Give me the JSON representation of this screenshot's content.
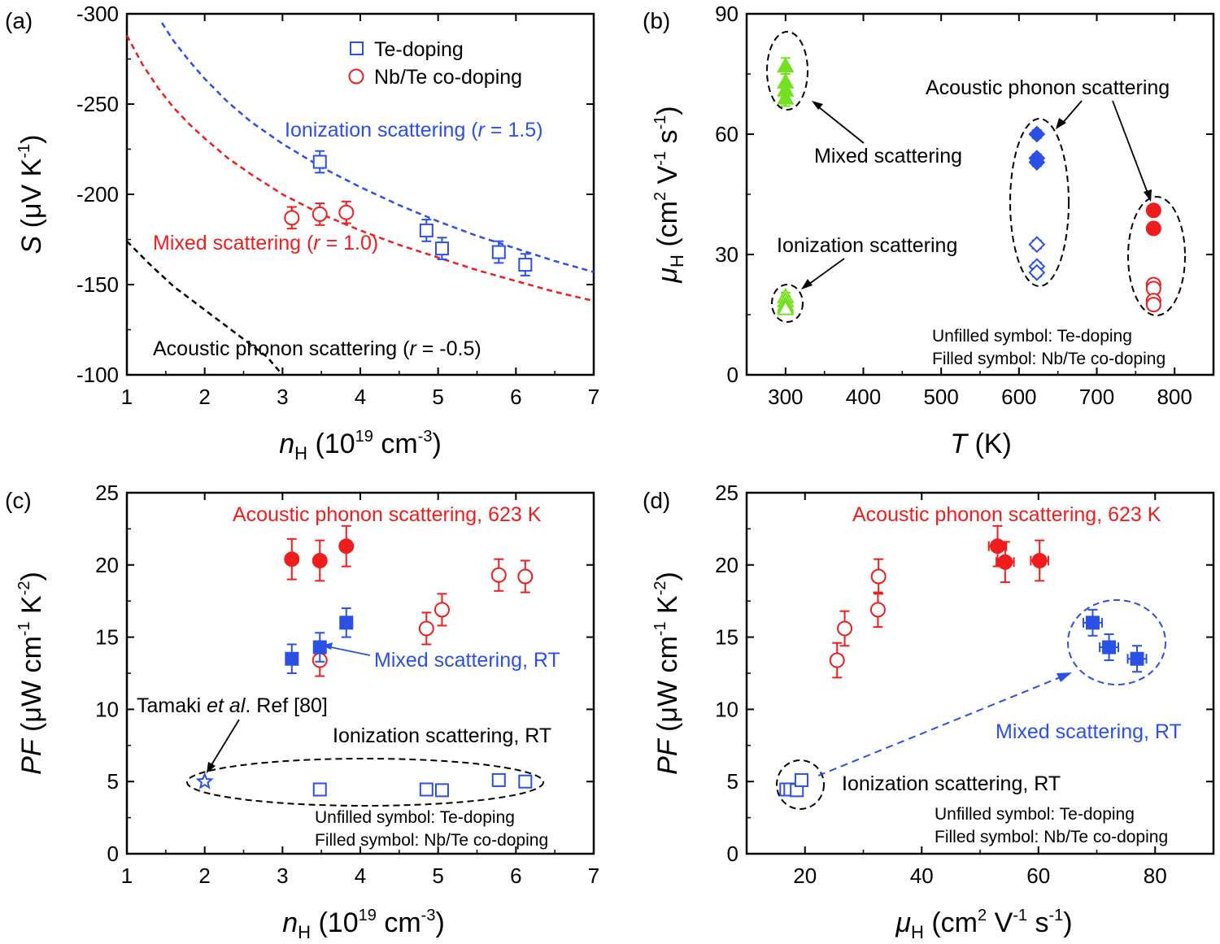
{
  "colors": {
    "red": "#ef1d1d",
    "blue": "#2b50e6",
    "green": "#74e01f",
    "black": "#000000"
  },
  "chart_data": [
    {
      "panel": "(a)",
      "type": "scatter",
      "xlabel_main": "n",
      "xlabel_sub": "H",
      "xlabel_rest": " (10",
      "xlabel_exp": "19",
      "xlabel_unit": " cm",
      "xlabel_unit_exp": "-3",
      "xlabel_end": ")",
      "ylabel_main": "S",
      "ylabel_rest": " (μV K",
      "ylabel_exp": "-1",
      "ylabel_end": ")",
      "xlim": [
        1,
        7
      ],
      "ylim": [
        -100,
        -300
      ],
      "xticks": [
        1,
        2,
        3,
        4,
        5,
        6,
        7
      ],
      "yticks": [
        -100,
        -150,
        -200,
        -250,
        -300
      ],
      "legend": [
        {
          "label": "Te-doping",
          "marker": "square-open",
          "color": "blue"
        },
        {
          "label": "Nb/Te co-doping",
          "marker": "circle-open",
          "color": "red"
        }
      ],
      "series": [
        {
          "name": "Te-doping",
          "marker": "square-open",
          "color": "blue",
          "x": [
            3.48,
            4.85,
            5.05,
            5.78,
            6.12
          ],
          "y": [
            -218,
            -180,
            -170,
            -168,
            -161
          ],
          "yerr": 6
        },
        {
          "name": "Nb/Te co-doping",
          "marker": "circle-open",
          "color": "red",
          "x": [
            3.12,
            3.48,
            3.82
          ],
          "y": [
            -187,
            -189,
            -190
          ],
          "yerr": 6
        }
      ],
      "curves": [
        {
          "name": "Ionization scattering",
          "color": "blue",
          "x": [
            1.45,
            1.6,
            1.8,
            2.0,
            2.3,
            2.6,
            3.0,
            3.5,
            4.0,
            4.5,
            5.0,
            5.5,
            6.0,
            6.5,
            7.0
          ],
          "y": [
            -295,
            -285,
            -274,
            -264,
            -251,
            -240,
            -228,
            -215,
            -204,
            -194,
            -185,
            -177,
            -170,
            -163,
            -157
          ]
        },
        {
          "name": "Mixed scattering",
          "color": "red",
          "x": [
            1.0,
            1.2,
            1.4,
            1.6,
            1.8,
            2.0,
            2.3,
            2.6,
            3.0,
            3.5,
            4.0,
            4.5,
            5.0,
            5.5,
            6.0,
            6.5,
            7.0
          ],
          "y": [
            -288,
            -272,
            -259,
            -248,
            -239,
            -231,
            -220,
            -211,
            -200,
            -189,
            -180,
            -172,
            -165,
            -158,
            -152,
            -146,
            -141
          ]
        },
        {
          "name": "Acoustic phonon scattering",
          "color": "black",
          "x": [
            1.0,
            1.3,
            1.6,
            2.0,
            2.4,
            2.8,
            3.0
          ],
          "y": [
            -174,
            -161,
            -149,
            -136,
            -123,
            -110,
            -100
          ]
        }
      ],
      "annotations": [
        {
          "color": "blue",
          "parts": [
            "Ionization scattering (",
            "r",
            " = 1.5)"
          ]
        },
        {
          "color": "red",
          "parts": [
            "Mixed scattering (",
            "r",
            " = 1.0)"
          ]
        },
        {
          "color": "black",
          "parts": [
            "Acoustic phonon scattering (",
            "r",
            " = -0.5)"
          ]
        }
      ]
    },
    {
      "panel": "(b)",
      "type": "scatter",
      "xlabel_main": "T",
      "xlabel_rest": " (K)",
      "ylabel_main": "μ",
      "ylabel_sub": "H",
      "ylabel_rest": " (cm",
      "ylabel_exp1": "2",
      "ylabel_mid": " V",
      "ylabel_exp2": "-1",
      "ylabel_mid2": " s",
      "ylabel_exp3": "-1",
      "ylabel_end": ")",
      "xlim": [
        250,
        850
      ],
      "ylim": [
        0,
        90
      ],
      "xticks": [
        300,
        400,
        500,
        600,
        700,
        800
      ],
      "yticks": [
        0,
        30,
        60,
        90
      ],
      "series": [
        {
          "name": "Mixed scattering (Nb/Te)",
          "marker": "triangle-filled",
          "color": "green",
          "x": [
            300,
            300,
            300,
            300
          ],
          "y": [
            77,
            73,
            71,
            69
          ],
          "yerr": 2
        },
        {
          "name": "Ionization scattering (Te)",
          "marker": "triangle-open",
          "color": "green",
          "x": [
            300,
            300,
            300,
            300,
            300
          ],
          "y": [
            19.5,
            18.5,
            17.5,
            17,
            16.5
          ],
          "yerr": 1
        },
        {
          "name": "Acoustic phonon Te 623 K",
          "marker": "diamond-open",
          "color": "blue",
          "x": [
            623,
            623,
            623
          ],
          "y": [
            32.5,
            27,
            25.5
          ],
          "yerr": 1
        },
        {
          "name": "Acoustic phonon Nb/Te 623 K",
          "marker": "diamond-filled",
          "color": "blue",
          "x": [
            623,
            623,
            623
          ],
          "y": [
            60,
            54,
            53
          ],
          "yerr": 1
        },
        {
          "name": "Acoustic phonon Te 773 K",
          "marker": "circle-open",
          "color": "red",
          "x": [
            773,
            773,
            773,
            773
          ],
          "y": [
            22.5,
            21.5,
            18.5,
            17.5
          ],
          "yerr": 1
        },
        {
          "name": "Acoustic phonon Nb/Te 773 K",
          "marker": "circle-filled",
          "color": "red",
          "x": [
            773,
            773
          ],
          "y": [
            41,
            36.5
          ],
          "yerr": 1
        }
      ],
      "annotations": [
        {
          "color": "black",
          "text": "Mixed scattering"
        },
        {
          "color": "black",
          "text": "Ionization scattering"
        },
        {
          "color": "black",
          "text": "Acoustic phonon scattering"
        }
      ],
      "notes": [
        "Unfilled symbol: Te-doping",
        "Filled symbol: Nb/Te co-doping"
      ]
    },
    {
      "panel": "(c)",
      "type": "scatter",
      "xlabel_main": "n",
      "xlabel_sub": "H",
      "xlabel_rest": " (10",
      "xlabel_exp": "19",
      "xlabel_unit": " cm",
      "xlabel_unit_exp": "-3",
      "xlabel_end": ")",
      "ylabel_main": "PF",
      "ylabel_rest": " (μW cm",
      "ylabel_exp1": "-1",
      "ylabel_mid": " K",
      "ylabel_exp2": "-2",
      "ylabel_end": ")",
      "xlim": [
        1,
        7
      ],
      "ylim": [
        0,
        25
      ],
      "xticks": [
        1,
        2,
        3,
        4,
        5,
        6,
        7
      ],
      "yticks": [
        0,
        5,
        10,
        15,
        20,
        25
      ],
      "series": [
        {
          "name": "Nb/Te 623 K",
          "marker": "circle-filled",
          "color": "red",
          "x": [
            3.12,
            3.48,
            3.82
          ],
          "y": [
            20.4,
            20.3,
            21.3
          ],
          "yerr": 1.4
        },
        {
          "name": "Te 623 K",
          "marker": "circle-open",
          "color": "red",
          "x": [
            3.48,
            4.85,
            5.05,
            5.78,
            6.12
          ],
          "y": [
            13.4,
            15.6,
            16.9,
            19.3,
            19.2
          ],
          "yerr": 1.1
        },
        {
          "name": "Nb/Te RT",
          "marker": "square-filled",
          "color": "blue",
          "x": [
            3.12,
            3.48,
            3.82
          ],
          "y": [
            13.5,
            14.3,
            16.0
          ],
          "yerr": 1.0
        },
        {
          "name": "Te RT",
          "marker": "square-open",
          "color": "blue",
          "x": [
            3.48,
            4.85,
            5.05,
            5.78,
            6.12
          ],
          "y": [
            4.45,
            4.45,
            4.4,
            5.1,
            5.0
          ],
          "yerr": 0.3
        },
        {
          "name": "Tamaki et al.",
          "marker": "star-open",
          "color": "blue",
          "x": [
            2.0
          ],
          "y": [
            5.0
          ],
          "yerr": 0
        }
      ],
      "annotations": [
        {
          "color": "red",
          "text": "Acoustic phonon scattering, 623 K"
        },
        {
          "color": "blue",
          "text": "Mixed scattering, RT"
        },
        {
          "color": "black",
          "text": "Ionization scattering, RT"
        },
        {
          "color": "black",
          "parts": [
            "Tamaki ",
            "et al",
            ". Ref [80]"
          ]
        }
      ],
      "notes": [
        "Unfilled symbol: Te-doping",
        "Filled symbol: Nb/Te co-doping"
      ]
    },
    {
      "panel": "(d)",
      "type": "scatter",
      "xlabel_main": "μ",
      "xlabel_sub": "H",
      "xlabel_rest": " (cm",
      "xlabel_exp1": "2",
      "xlabel_mid": " V",
      "xlabel_exp2": "-1",
      "xlabel_mid2": " s",
      "xlabel_exp3": "-1",
      "xlabel_end": ")",
      "ylabel_main": "PF",
      "ylabel_rest": " (μW cm",
      "ylabel_exp1": "-1",
      "ylabel_mid": " K",
      "ylabel_exp2": "-2",
      "ylabel_end": ")",
      "xlim": [
        10,
        90
      ],
      "ylim": [
        0,
        25
      ],
      "xticks": [
        20,
        40,
        60,
        80
      ],
      "yticks": [
        0,
        5,
        10,
        15,
        20,
        25
      ],
      "series": [
        {
          "name": "Nb/Te 623 K",
          "marker": "circle-filled",
          "color": "red",
          "x": [
            53,
            54.3,
            60.2
          ],
          "y": [
            21.3,
            20.2,
            20.3
          ],
          "yerr": 1.4,
          "xerr": 1.5
        },
        {
          "name": "Te 623 K",
          "marker": "circle-open",
          "color": "red",
          "x": [
            25.5,
            26.8,
            32.5,
            32.6
          ],
          "y": [
            13.4,
            15.6,
            16.9,
            19.2
          ],
          "yerr": 1.2
        },
        {
          "name": "Nb/Te RT",
          "marker": "square-filled",
          "color": "blue",
          "x": [
            69.3,
            72.1,
            76.9
          ],
          "y": [
            16.0,
            14.3,
            13.5
          ],
          "yerr": 0.9,
          "xerr": 1.6
        },
        {
          "name": "Te RT",
          "marker": "square-open",
          "color": "blue",
          "x": [
            16.8,
            17.5,
            18.6,
            19.4
          ],
          "y": [
            4.45,
            4.45,
            4.4,
            5.1
          ],
          "yerr": 0.3
        }
      ],
      "annotations": [
        {
          "color": "red",
          "text": "Acoustic phonon scattering, 623 K"
        },
        {
          "color": "blue",
          "text": "Mixed scattering, RT"
        },
        {
          "color": "black",
          "text": "Ionization scattering, RT"
        }
      ],
      "notes": [
        "Unfilled symbol: Te-doping",
        "Filled symbol: Nb/Te co-doping"
      ]
    }
  ]
}
